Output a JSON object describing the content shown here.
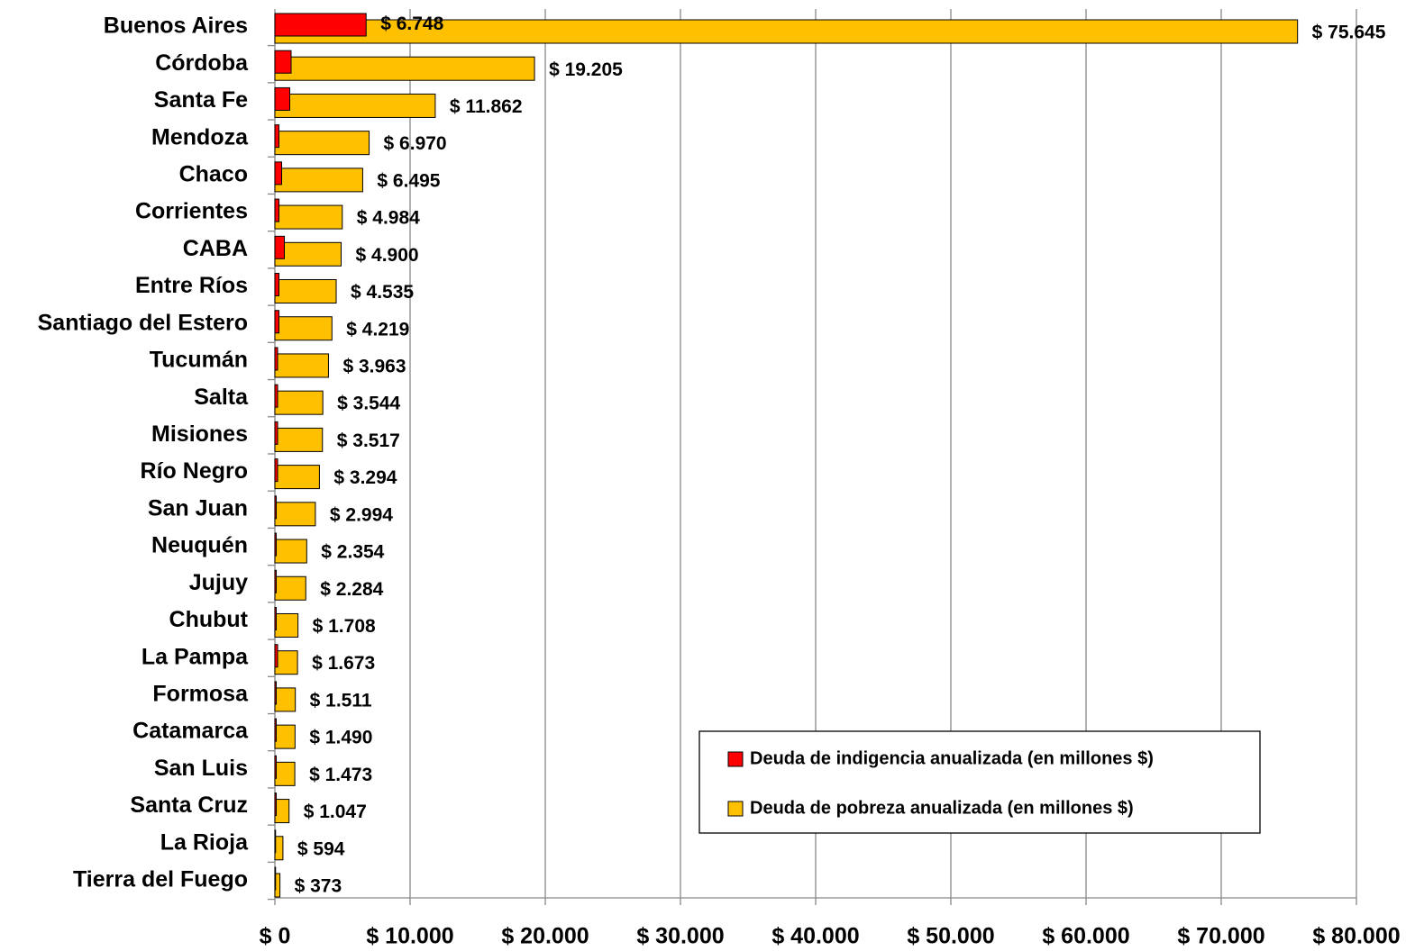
{
  "chart_data": {
    "type": "barh",
    "categories": [
      "Buenos Aires",
      "Córdoba",
      "Santa Fe",
      "Mendoza",
      "Chaco",
      "Corrientes",
      "CABA",
      "Entre Ríos",
      "Santiago del Estero",
      "Tucumán",
      "Salta",
      "Misiones",
      "Río Negro",
      "San Juan",
      "Neuquén",
      "Jujuy",
      "Chubut",
      "La Pampa",
      "Formosa",
      "Catamarca",
      "San Luis",
      "Santa Cruz",
      "La Rioja",
      "Tierra del Fuego"
    ],
    "series": [
      {
        "name": "Deuda de indigencia anualizada (en millones $)",
        "color": "#ff0000",
        "values": [
          6748,
          1200,
          1100,
          300,
          500,
          300,
          700,
          300,
          300,
          200,
          200,
          200,
          200,
          100,
          100,
          100,
          100,
          200,
          100,
          100,
          100,
          100,
          50,
          50
        ],
        "value_labels": [
          "$ 6.748",
          null,
          null,
          null,
          null,
          null,
          null,
          null,
          null,
          null,
          null,
          null,
          null,
          null,
          null,
          null,
          null,
          null,
          null,
          null,
          null,
          null,
          null,
          null
        ]
      },
      {
        "name": "Deuda de pobreza anualizada (en millones $)",
        "color": "#ffc000",
        "values": [
          75645,
          19205,
          11862,
          6970,
          6495,
          4984,
          4900,
          4535,
          4219,
          3963,
          3544,
          3517,
          3294,
          2994,
          2354,
          2284,
          1708,
          1673,
          1511,
          1490,
          1473,
          1047,
          594,
          373
        ],
        "value_labels": [
          "$ 75.645",
          "$ 19.205",
          "$ 11.862",
          "$ 6.970",
          "$ 6.495",
          "$ 4.984",
          "$ 4.900",
          "$ 4.535",
          "$ 4.219",
          "$ 3.963",
          "$ 3.544",
          "$ 3.517",
          "$ 3.294",
          "$ 2.994",
          "$ 2.354",
          "$ 2.284",
          "$ 1.708",
          "$ 1.673",
          "$ 1.511",
          "$ 1.490",
          "$ 1.473",
          "$ 1.047",
          "$ 594",
          "$ 373"
        ]
      }
    ],
    "xlim": [
      0,
      80000
    ],
    "xticks": [
      {
        "value": 0,
        "label": "$ 0"
      },
      {
        "value": 10000,
        "label": "$ 10.000"
      },
      {
        "value": 20000,
        "label": "$ 20.000"
      },
      {
        "value": 30000,
        "label": "$ 30.000"
      },
      {
        "value": 40000,
        "label": "$ 40.000"
      },
      {
        "value": 50000,
        "label": "$ 50.000"
      },
      {
        "value": 60000,
        "label": "$ 60.000"
      },
      {
        "value": 70000,
        "label": "$ 70.000"
      },
      {
        "value": 80000,
        "label": "$ 80.000"
      }
    ],
    "grid": true,
    "legend": "lower right"
  }
}
